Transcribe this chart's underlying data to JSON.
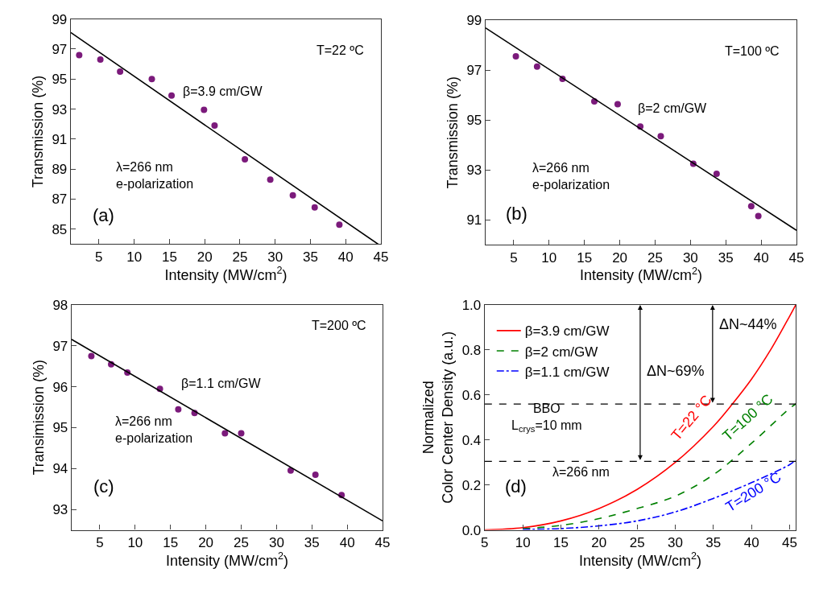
{
  "chart_data": [
    {
      "type": "scatter",
      "xlabel": "Intensity (MW/cm$^{2}$)",
      "ylabel": "Transmission (%)",
      "xlim": [
        1,
        45
      ],
      "xticks": [
        5,
        10,
        15,
        20,
        25,
        30,
        35,
        40,
        45
      ],
      "ylim": [
        84,
        99
      ],
      "yticks": [
        85,
        87,
        89,
        91,
        93,
        95,
        97,
        99
      ],
      "series": [
        {
          "type": "scatter",
          "marker": "circle",
          "color": "#7b1a7b",
          "x": [
            2.2,
            5.2,
            8.0,
            12.5,
            15.3,
            19.9,
            21.4,
            25.7,
            29.3,
            32.5,
            35.6,
            39.1
          ],
          "values": [
            96.6,
            96.3,
            95.5,
            95.0,
            93.9,
            92.95,
            91.9,
            89.65,
            88.3,
            87.25,
            86.45,
            85.3
          ]
        },
        {
          "type": "line",
          "color": "#000000",
          "x": [
            1,
            25.7,
            44.6
          ],
          "values": [
            98.1,
            90.1,
            84
          ]
        }
      ],
      "annotations": [
        "T=22 ºC",
        "β=3.9 cm/GW",
        "λ=266 nm\ne-polarization",
        "(a)"
      ]
    },
    {
      "type": "scatter",
      "xlabel": "Intensity (MW/cm$^{2}$)",
      "ylabel": "Transmission (%)",
      "xlim": [
        1,
        45
      ],
      "xticks": [
        5,
        10,
        15,
        20,
        25,
        30,
        35,
        40,
        45
      ],
      "ylim": [
        90,
        99
      ],
      "yticks": [
        91,
        93,
        95,
        97,
        99
      ],
      "series": [
        {
          "type": "scatter",
          "marker": "circle",
          "color": "#7b1a7b",
          "x": [
            5.3,
            8.3,
            11.9,
            16.4,
            19.7,
            22.9,
            25.8,
            30.4,
            33.7,
            38.6,
            39.6
          ],
          "values": [
            97.56,
            97.15,
            96.66,
            95.75,
            95.64,
            94.74,
            94.36,
            93.25,
            92.85,
            91.55,
            91.15
          ]
        },
        {
          "type": "line",
          "color": "#000000",
          "x": [
            1,
            45
          ],
          "values": [
            98.7,
            90.58
          ]
        }
      ],
      "annotations": [
        "T=100 ºC",
        "β=2 cm/GW",
        "λ=266 nm\ne-polarization",
        "(b)"
      ]
    },
    {
      "type": "scatter",
      "xlabel": "Intensity (MW/cm$^{2}$)",
      "ylabel": "Transimission (%)",
      "xlim": [
        1,
        45
      ],
      "xticks": [
        5,
        10,
        15,
        20,
        25,
        30,
        35,
        40,
        45
      ],
      "ylim": [
        92.5,
        98
      ],
      "yticks": [
        93,
        94,
        95,
        96,
        97,
        98
      ],
      "series": [
        {
          "type": "scatter",
          "marker": "circle",
          "color": "#7b1a7b",
          "x": [
            3.8,
            6.6,
            8.9,
            13.5,
            16.1,
            18.4,
            22.7,
            25.0,
            32.0,
            35.5,
            39.2
          ],
          "values": [
            96.75,
            96.55,
            96.35,
            95.95,
            95.45,
            95.36,
            94.86,
            94.86,
            93.95,
            93.85,
            93.35
          ]
        },
        {
          "type": "line",
          "color": "#000000",
          "x": [
            1,
            45
          ],
          "values": [
            97.16,
            92.72
          ]
        }
      ],
      "annotations": [
        "T=200 ºC",
        "β=1.1 cm/GW",
        "λ=266 nm\ne-polarization",
        "(c)"
      ]
    },
    {
      "type": "line",
      "xlabel": "Intensity (MW/cm$^{2}$)",
      "ylabel": "Normalized\nColor Center Density (a.u.)",
      "xlim": [
        5,
        45.8
      ],
      "xticks": [
        5,
        10,
        15,
        20,
        25,
        30,
        35,
        40,
        45
      ],
      "ylim": [
        0,
        1
      ],
      "yticks": [
        {
          "value": 0,
          "label": "0.0"
        },
        0.2,
        0.4,
        0.6,
        0.8,
        {
          "value": 1,
          "label": "1.0"
        }
      ],
      "legend": "top left",
      "series": [
        {
          "name": "β=3.9 cm/GW",
          "color": "#ff0000",
          "line_style": "solid",
          "x": [
            5,
            10,
            15,
            20,
            25,
            30,
            35,
            37.5,
            40,
            42.5,
            45,
            45.8
          ],
          "values": [
            0,
            0.01,
            0.04,
            0.095,
            0.18,
            0.3,
            0.46,
            0.56,
            0.67,
            0.8,
            0.95,
            1.0
          ]
        },
        {
          "name": "β=2 cm/GW",
          "color": "#008000",
          "line_style": "dashed",
          "x": [
            10,
            15,
            20,
            25,
            30,
            35,
            40,
            45,
            45.8
          ],
          "values": [
            0.005,
            0.02,
            0.05,
            0.095,
            0.15,
            0.245,
            0.385,
            0.54,
            0.56
          ]
        },
        {
          "name": "β=1.1 cm/GW",
          "color": "#0000ff",
          "line_style": "dashdot",
          "x": [
            10,
            15,
            20,
            25,
            30,
            35,
            40,
            45,
            45.8
          ],
          "values": [
            0.002,
            0.006,
            0.018,
            0.04,
            0.08,
            0.14,
            0.21,
            0.29,
            0.31
          ]
        }
      ],
      "ref_lines": [
        {
          "axis": "y",
          "value": 0.305,
          "color": "#000000",
          "line_style": "dashed"
        },
        {
          "axis": "y",
          "value": 0.56,
          "color": "#000000",
          "line_style": "dashed"
        }
      ],
      "annotations": [
        "BBO\nL$_{crys}$=10 mm",
        "λ=266 nm",
        "(d)",
        "T=22 °C",
        "T=100 °C",
        "T=200 °C",
        "ΔN~69%",
        {
          "text": "ΔN~44%",
          "x": 34.9,
          "y": 0.56
        }
      ]
    }
  ]
}
